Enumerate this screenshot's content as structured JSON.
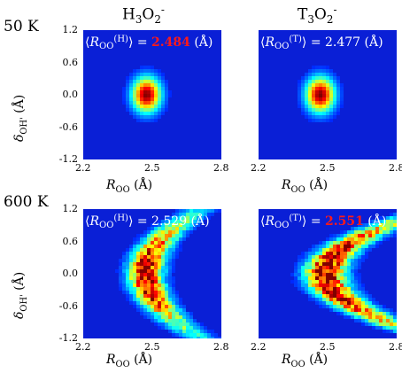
{
  "chart_data": {
    "type": "heatmap",
    "columns": [
      {
        "label": "H",
        "sub": "3",
        "mid": "O",
        "sub2": "2",
        "sup": "-"
      },
      {
        "label": "T",
        "sub": "3",
        "mid": "O",
        "sub2": "2",
        "sup": "-"
      }
    ],
    "rows": [
      "50 K",
      "600 K"
    ],
    "x_axis": {
      "label_main": "R",
      "label_sub": "OO",
      "label_unit": "(Å)",
      "ticks": [
        "2.2",
        "2.5",
        "2.8"
      ],
      "range": [
        2.2,
        2.8
      ]
    },
    "y_axis": {
      "label_main": "δ",
      "label_sub": "OH'",
      "label_unit": "(Å)",
      "ticks": [
        "1.2",
        "0.6",
        "0.0",
        "-0.6",
        "-1.2"
      ],
      "range": [
        -1.2,
        1.2
      ]
    },
    "panels": [
      {
        "row": "50 K",
        "column": "H3O2-",
        "isotope": "H",
        "mean_ROO": "2.484",
        "value_highlight": true,
        "unit": "(Å)"
      },
      {
        "row": "50 K",
        "column": "T3O2-",
        "isotope": "T",
        "mean_ROO": "2.477",
        "value_highlight": false,
        "unit": "(Å)"
      },
      {
        "row": "600 K",
        "column": "H3O2-",
        "isotope": "H",
        "mean_ROO": "2.529",
        "value_highlight": false,
        "unit": "(Å)"
      },
      {
        "row": "600 K",
        "column": "T3O2-",
        "isotope": "T",
        "mean_ROO": "2.551",
        "value_highlight": true,
        "unit": "(Å)"
      }
    ],
    "colors": {
      "background": "#0a1fd6",
      "highlight": "#ff1a1a"
    }
  }
}
